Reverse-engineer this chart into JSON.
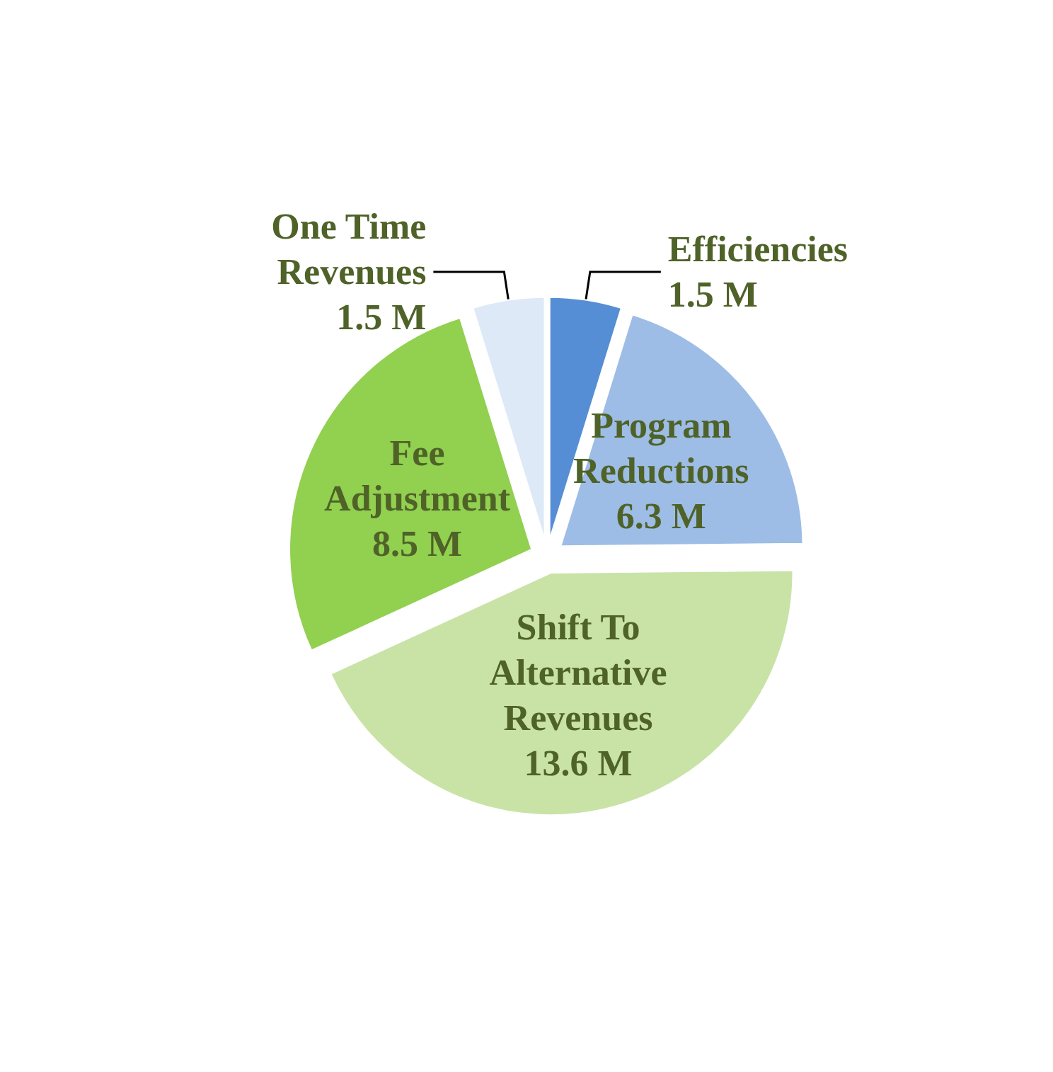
{
  "chart_data": {
    "type": "pie",
    "categories": [
      "Efficiencies",
      "Program\nReductions",
      "Shift To\nAlternative\nRevenues",
      "Fee\nAdjustment",
      "One Time\nRevenues"
    ],
    "values": [
      1.5,
      6.3,
      13.6,
      8.5,
      1.5
    ],
    "value_labels": [
      "1.5 M",
      "6.3 M",
      "13.6 M",
      "8.5 M",
      "1.5 M"
    ],
    "colors": [
      "#558ed5",
      "#9dbde6",
      "#c9e3a6",
      "#92d050",
      "#dde9f7"
    ]
  }
}
